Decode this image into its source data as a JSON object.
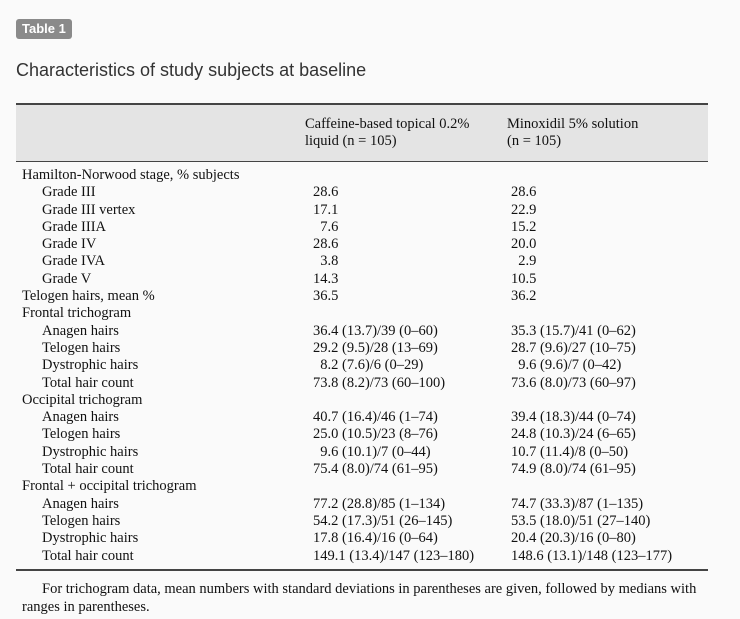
{
  "badge": "Table 1",
  "caption": "Characteristics of study subjects at baseline",
  "columns": {
    "c1_line1": "Caffeine-based topical 0.2%",
    "c1_line2": "liquid (n = 105)",
    "c2_line1": "Minoxidil 5% solution",
    "c2_line2": "(n = 105)"
  },
  "rows": [
    {
      "label": "Hamilton-Norwood stage, % subjects",
      "v1": "",
      "v2": "",
      "indent": false
    },
    {
      "label": "Grade III",
      "v1": "28.6",
      "v2": "28.6",
      "indent": true
    },
    {
      "label": "Grade III vertex",
      "v1": "17.1",
      "v2": "22.9",
      "indent": true
    },
    {
      "label": "Grade IIIA",
      "v1": " 7.6",
      "v2": "15.2",
      "indent": true
    },
    {
      "label": "Grade IV",
      "v1": "28.6",
      "v2": "20.0",
      "indent": true
    },
    {
      "label": "Grade IVA",
      "v1": " 3.8",
      "v2": " 2.9",
      "indent": true
    },
    {
      "label": "Grade V",
      "v1": "14.3",
      "v2": "10.5",
      "indent": true
    },
    {
      "label": "Telogen hairs, mean %",
      "v1": "36.5",
      "v2": "36.2",
      "indent": false
    },
    {
      "label": "Frontal trichogram",
      "v1": "",
      "v2": "",
      "indent": false
    },
    {
      "label": "Anagen hairs",
      "v1": "36.4 (13.7)/39 (0–60)",
      "v2": "35.3 (15.7)/41 (0–62)",
      "indent": true
    },
    {
      "label": "Telogen hairs",
      "v1": "29.2 (9.5)/28 (13–69)",
      "v2": "28.7 (9.6)/27 (10–75)",
      "indent": true
    },
    {
      "label": "Dystrophic hairs",
      "v1": " 8.2 (7.6)/6 (0–29)",
      "v2": " 9.6 (9.6)/7 (0–42)",
      "indent": true
    },
    {
      "label": "Total hair count",
      "v1": "73.8 (8.2)/73 (60–100)",
      "v2": "73.6 (8.0)/73 (60–97)",
      "indent": true
    },
    {
      "label": "Occipital trichogram",
      "v1": "",
      "v2": "",
      "indent": false
    },
    {
      "label": "Anagen hairs",
      "v1": "40.7 (16.4)/46 (1–74)",
      "v2": "39.4 (18.3)/44 (0–74)",
      "indent": true
    },
    {
      "label": "Telogen hairs",
      "v1": "25.0 (10.5)/23 (8–76)",
      "v2": "24.8 (10.3)/24 (6–65)",
      "indent": true
    },
    {
      "label": "Dystrophic hairs",
      "v1": " 9.6 (10.1)/7 (0–44)",
      "v2": "10.7 (11.4)/8 (0–50)",
      "indent": true
    },
    {
      "label": "Total hair count",
      "v1": "75.4 (8.0)/74 (61–95)",
      "v2": "74.9 (8.0)/74 (61–95)",
      "indent": true
    },
    {
      "label": "Frontal + occipital trichogram",
      "v1": "",
      "v2": "",
      "indent": false
    },
    {
      "label": "Anagen hairs",
      "v1": "77.2 (28.8)/85 (1–134)",
      "v2": "74.7 (33.3)/87 (1–135)",
      "indent": true
    },
    {
      "label": "Telogen hairs",
      "v1": "54.2 (17.3)/51 (26–145)",
      "v2": "53.5 (18.0)/51 (27–140)",
      "indent": true
    },
    {
      "label": "Dystrophic hairs",
      "v1": "17.8 (16.4)/16 (0–64)",
      "v2": "20.4 (20.3)/16 (0–80)",
      "indent": true
    },
    {
      "label": "Total hair count",
      "v1": "149.1 (13.4)/147 (123–180)",
      "v2": "148.6 (13.1)/148 (123–177)",
      "indent": true
    }
  ],
  "footnote": "For trichogram data, mean numbers with standard deviations in parentheses are given, followed by medians with ranges in parentheses."
}
